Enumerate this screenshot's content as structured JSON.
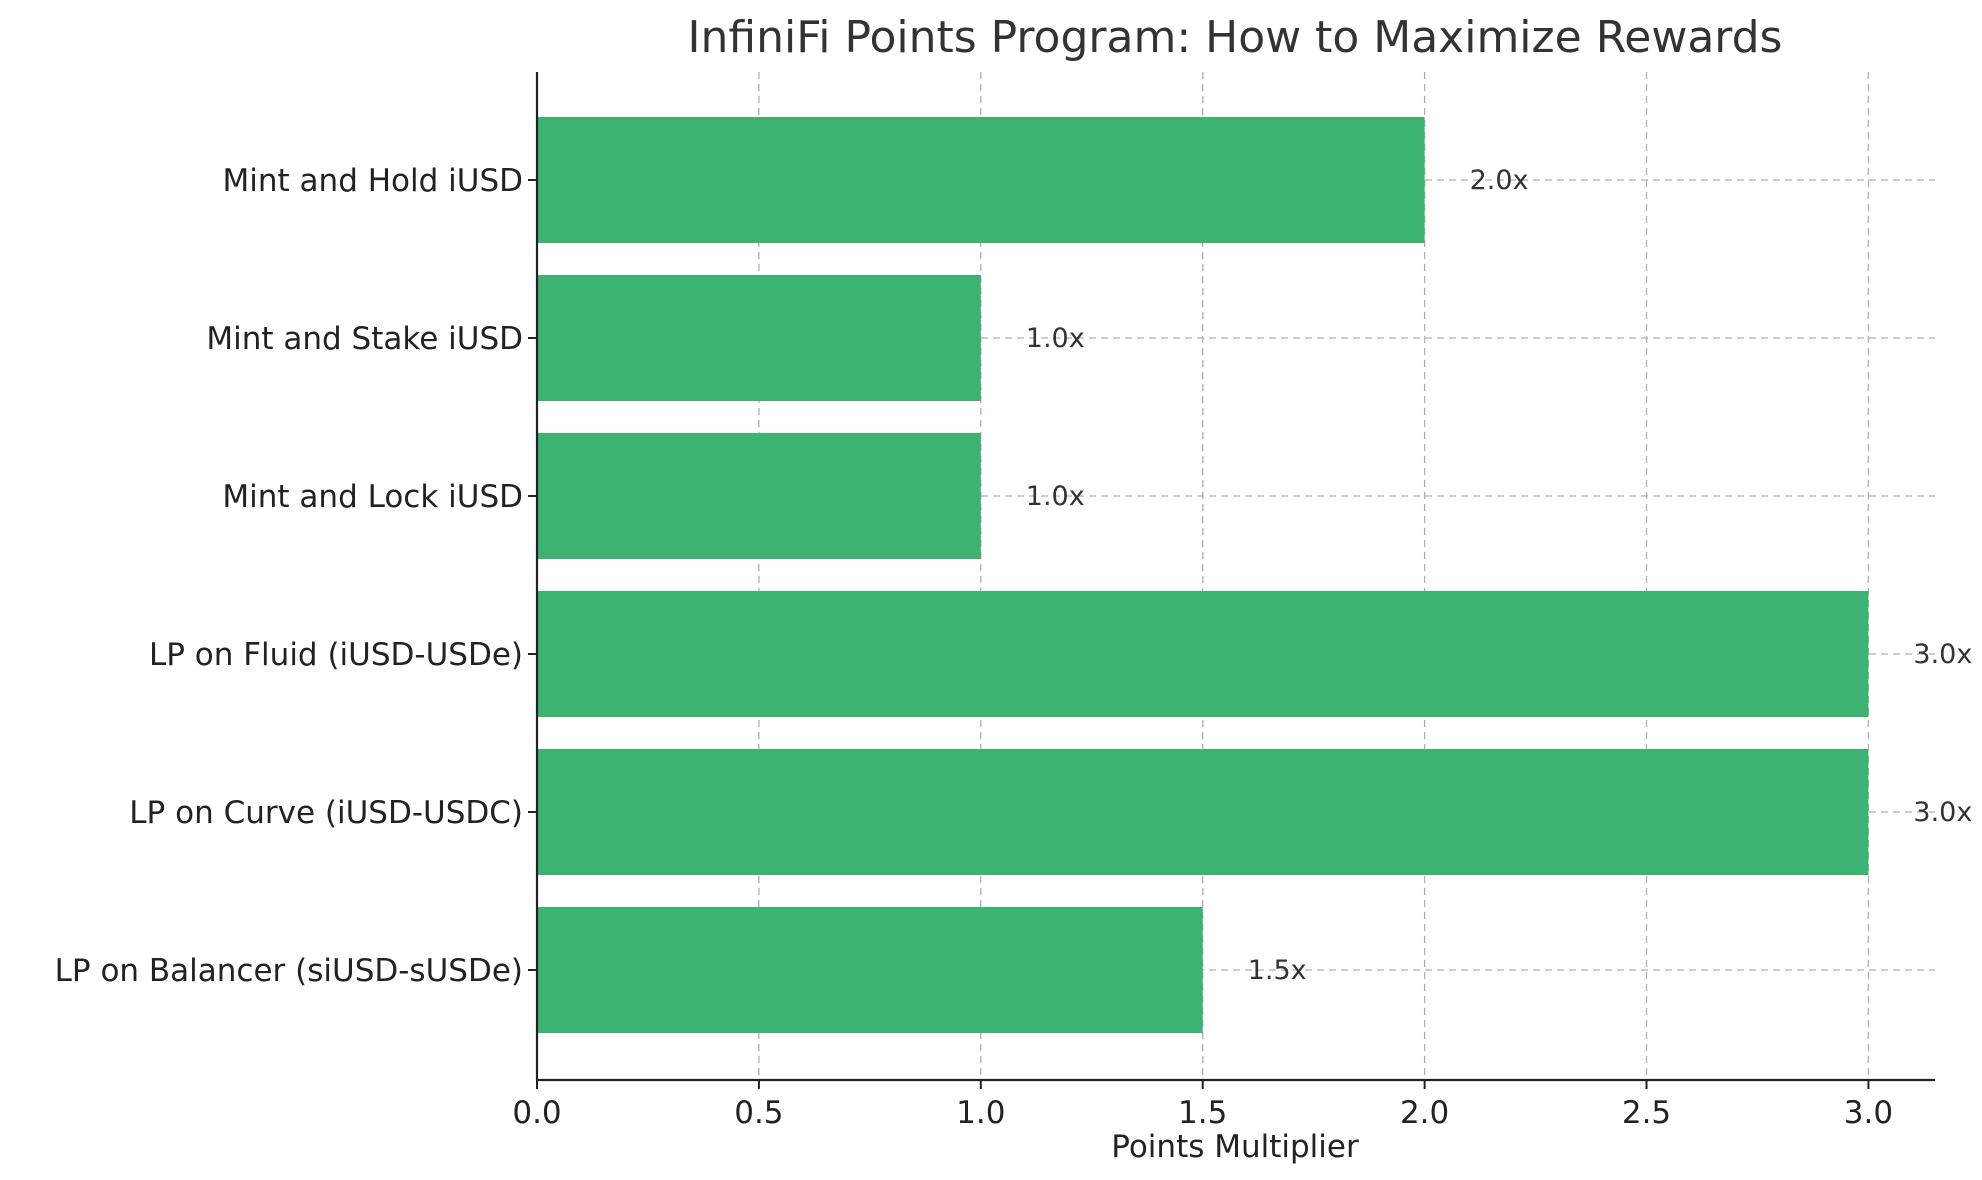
{
  "chart_data": {
    "type": "bar",
    "orientation": "horizontal",
    "title": "InfiniFi Points Program: How to Maximize Rewards",
    "xlabel": "Points Multiplier",
    "ylabel": "",
    "categories": [
      "Mint and Hold iUSD",
      "Mint and Stake iUSD",
      "Mint and Lock iUSD",
      "LP on Fluid (iUSD-USDe)",
      "LP on Curve (iUSD-USDC)",
      "LP on Balancer (siUSD-sUSDe)"
    ],
    "values": [
      2.0,
      1.0,
      1.0,
      3.0,
      3.0,
      1.5
    ],
    "value_labels": [
      "2.0x",
      "1.0x",
      "1.0x",
      "3.0x",
      "3.0x",
      "1.5x"
    ],
    "xlim": [
      0,
      3.15
    ],
    "xticks": [
      "0.0",
      "0.5",
      "1.0",
      "1.5",
      "2.0",
      "2.5",
      "3.0"
    ],
    "grid": true,
    "bar_color": "#3cb371",
    "legend": "none"
  }
}
